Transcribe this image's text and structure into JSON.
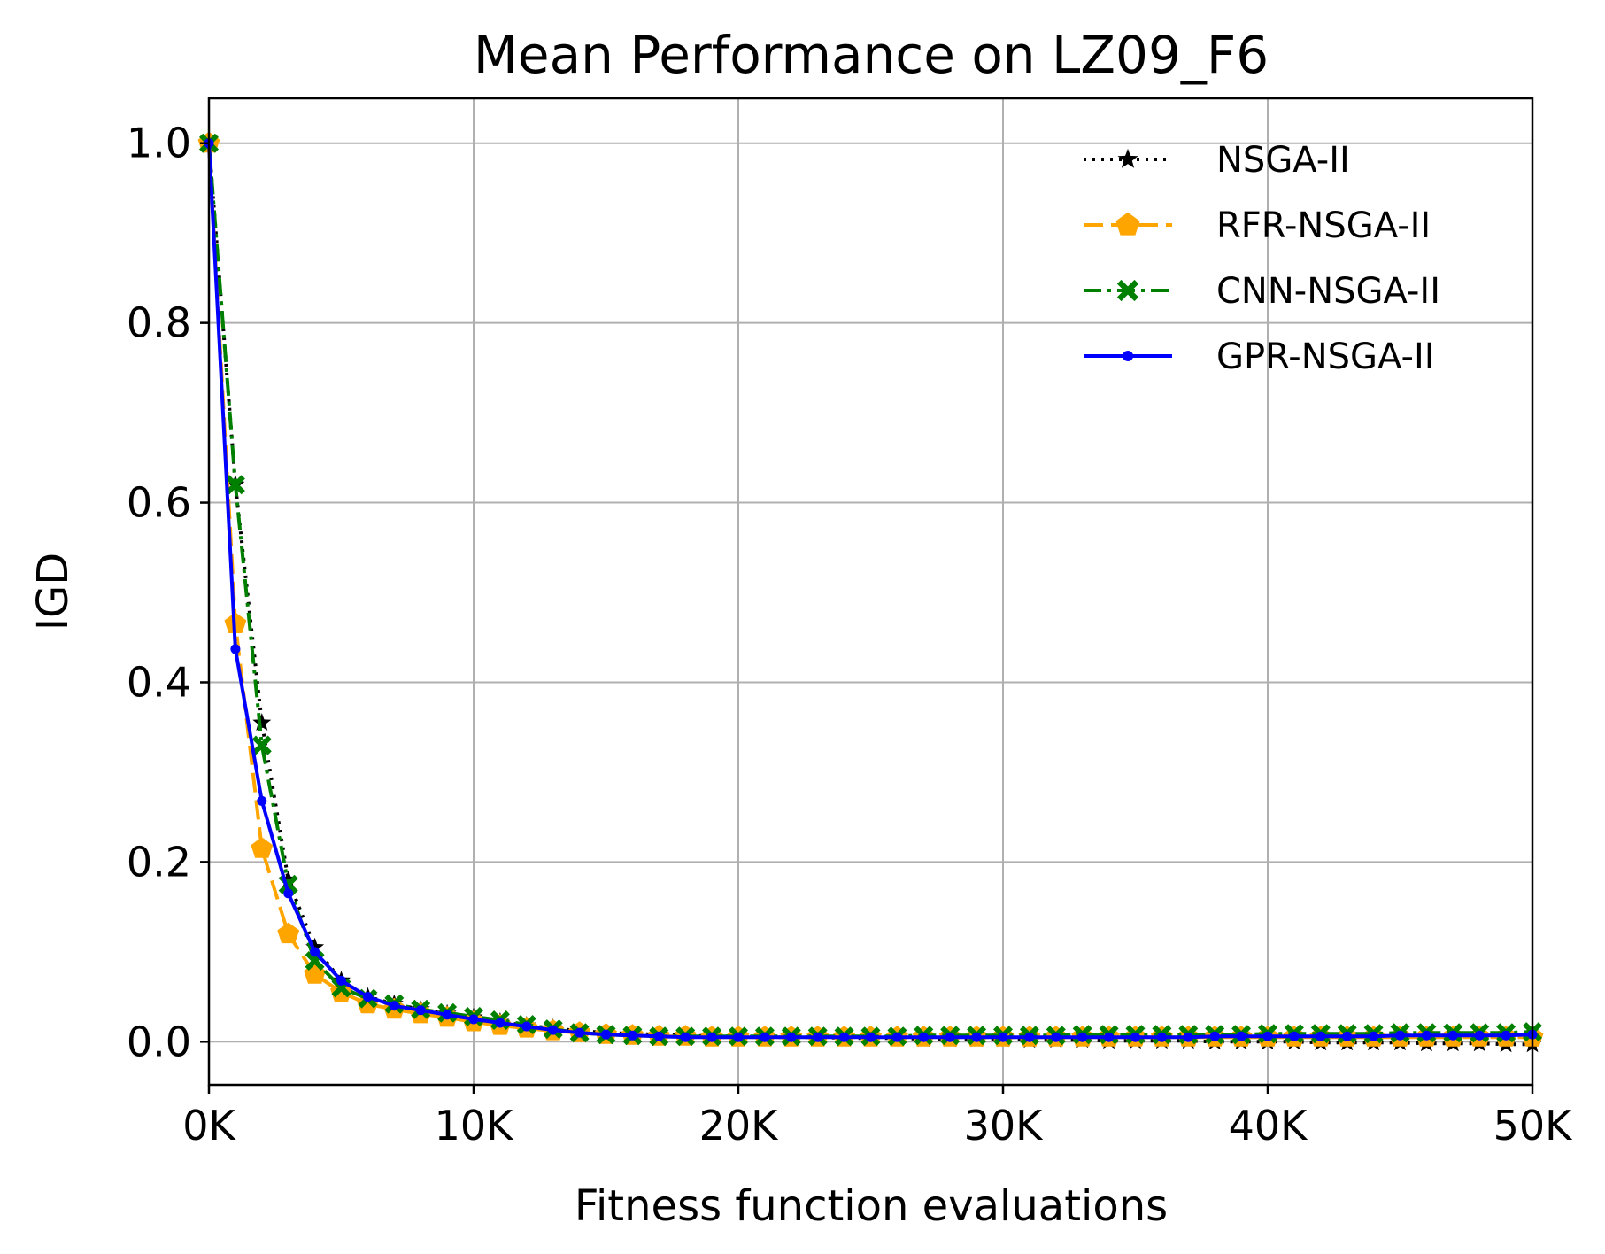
{
  "chart_data": {
    "type": "line",
    "title": "Mean Performance on LZ09_F6",
    "xlabel": "Fitness function evaluations",
    "ylabel": "IGD",
    "xlim": [
      0,
      50000
    ],
    "ylim": [
      -0.048,
      1.05
    ],
    "xticks": [
      0,
      10000,
      20000,
      30000,
      40000,
      50000
    ],
    "xtick_labels": [
      "0K",
      "10K",
      "20K",
      "30K",
      "40K",
      "50K"
    ],
    "yticks": [
      0.0,
      0.2,
      0.4,
      0.6,
      0.8,
      1.0
    ],
    "ytick_labels": [
      "0.0",
      "0.2",
      "0.4",
      "0.6",
      "0.8",
      "1.0"
    ],
    "grid": true,
    "legend_position": "top-right",
    "x": [
      0,
      1000,
      2000,
      3000,
      4000,
      5000,
      6000,
      7000,
      8000,
      9000,
      10000,
      11000,
      12000,
      13000,
      14000,
      15000,
      16000,
      17000,
      18000,
      19000,
      20000,
      21000,
      22000,
      23000,
      24000,
      25000,
      26000,
      27000,
      28000,
      29000,
      30000,
      31000,
      32000,
      33000,
      34000,
      35000,
      36000,
      37000,
      38000,
      39000,
      40000,
      41000,
      42000,
      43000,
      44000,
      45000,
      46000,
      47000,
      48000,
      49000,
      50000
    ],
    "series": [
      {
        "name": "NSGA-II",
        "color": "#000000",
        "line_style": "dotted",
        "marker": "star",
        "values": [
          1.0,
          0.62,
          0.355,
          0.18,
          0.105,
          0.068,
          0.05,
          0.042,
          0.036,
          0.031,
          0.027,
          0.022,
          0.018,
          0.015,
          0.012,
          0.01,
          0.009,
          0.008,
          0.007,
          0.006,
          0.006,
          0.005,
          0.005,
          0.005,
          0.004,
          0.004,
          0.004,
          0.003,
          0.003,
          0.003,
          0.003,
          0.002,
          0.002,
          0.002,
          0.001,
          0.001,
          0.001,
          0.001,
          0.0,
          0.0,
          0.0,
          0.0,
          -0.001,
          -0.001,
          -0.001,
          -0.001,
          -0.002,
          -0.002,
          -0.002,
          -0.003,
          -0.003
        ]
      },
      {
        "name": "RFR-NSGA-II",
        "color": "#ffa500",
        "line_style": "dashed",
        "marker": "pentagon",
        "values": [
          1.0,
          0.465,
          0.215,
          0.12,
          0.075,
          0.055,
          0.042,
          0.036,
          0.031,
          0.027,
          0.022,
          0.018,
          0.015,
          0.012,
          0.01,
          0.008,
          0.007,
          0.006,
          0.006,
          0.005,
          0.005,
          0.005,
          0.005,
          0.005,
          0.005,
          0.005,
          0.005,
          0.005,
          0.005,
          0.005,
          0.005,
          0.005,
          0.005,
          0.005,
          0.005,
          0.005,
          0.005,
          0.005,
          0.005,
          0.005,
          0.005,
          0.005,
          0.005,
          0.005,
          0.005,
          0.005,
          0.005,
          0.005,
          0.005,
          0.005,
          0.005
        ]
      },
      {
        "name": "CNN-NSGA-II",
        "color": "#008000",
        "line_style": "dashdot",
        "marker": "x-filled",
        "values": [
          1.0,
          0.62,
          0.33,
          0.175,
          0.09,
          0.06,
          0.048,
          0.042,
          0.036,
          0.032,
          0.028,
          0.024,
          0.019,
          0.014,
          0.01,
          0.008,
          0.007,
          0.006,
          0.006,
          0.006,
          0.006,
          0.006,
          0.006,
          0.006,
          0.006,
          0.006,
          0.006,
          0.007,
          0.007,
          0.007,
          0.007,
          0.007,
          0.007,
          0.008,
          0.008,
          0.008,
          0.008,
          0.008,
          0.008,
          0.008,
          0.009,
          0.009,
          0.009,
          0.009,
          0.009,
          0.01,
          0.01,
          0.01,
          0.01,
          0.01,
          0.011
        ]
      },
      {
        "name": "GPR-NSGA-II",
        "color": "#0000ff",
        "line_style": "solid",
        "marker": "dot",
        "values": [
          1.0,
          0.437,
          0.268,
          0.165,
          0.1,
          0.068,
          0.05,
          0.04,
          0.035,
          0.03,
          0.025,
          0.021,
          0.017,
          0.013,
          0.01,
          0.008,
          0.007,
          0.006,
          0.005,
          0.005,
          0.005,
          0.005,
          0.005,
          0.005,
          0.005,
          0.005,
          0.005,
          0.005,
          0.005,
          0.005,
          0.005,
          0.005,
          0.005,
          0.005,
          0.005,
          0.005,
          0.005,
          0.005,
          0.006,
          0.006,
          0.006,
          0.006,
          0.006,
          0.006,
          0.006,
          0.007,
          0.007,
          0.007,
          0.007,
          0.007,
          0.008
        ]
      }
    ]
  }
}
